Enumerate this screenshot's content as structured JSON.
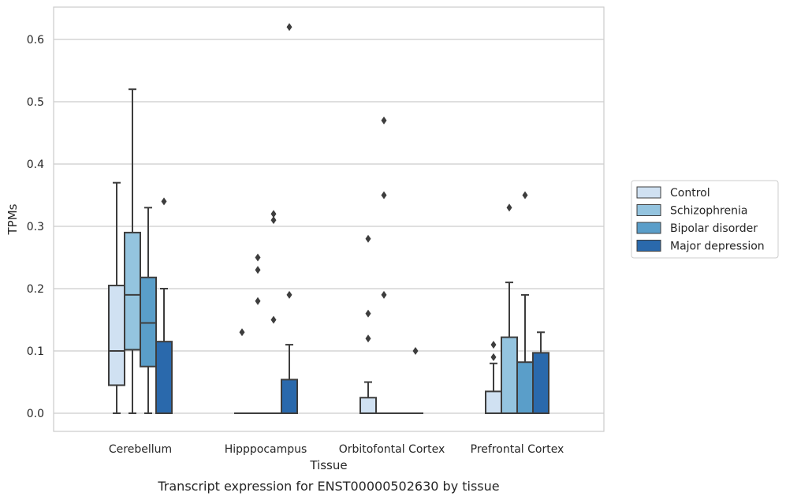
{
  "chart_data": {
    "type": "box",
    "xlabel": "Tissue",
    "ylabel": "TPMs",
    "caption": "Transcript expression for ENST00000502630 by tissue",
    "ylim": [
      -0.03,
      0.655
    ],
    "yticks": [
      0.0,
      0.1,
      0.2,
      0.3,
      0.4,
      0.5,
      0.6
    ],
    "ytick_labels": [
      "0.0",
      "0.1",
      "0.2",
      "0.3",
      "0.4",
      "0.5",
      "0.6"
    ],
    "grid": "horizontal",
    "legend_position": "right",
    "categories": [
      "Cerebellum",
      "Hipppocampus",
      "Orbitofontal Cortex",
      "Prefrontal Cortex"
    ],
    "series": [
      {
        "name": "Control",
        "color": "#d0e1f2",
        "boxes": [
          {
            "q1": 0.045,
            "median": 0.1,
            "q3": 0.205,
            "whisker_low": 0.0,
            "whisker_high": 0.37,
            "outliers": []
          },
          {
            "q1": 0.0,
            "median": 0.0,
            "q3": 0.0,
            "whisker_low": 0.0,
            "whisker_high": 0.0,
            "outliers": [
              0.13
            ]
          },
          {
            "q1": 0.0,
            "median": 0.0,
            "q3": 0.025,
            "whisker_low": 0.0,
            "whisker_high": 0.05,
            "outliers": [
              0.12,
              0.16,
              0.28
            ]
          },
          {
            "q1": 0.0,
            "median": 0.0,
            "q3": 0.035,
            "whisker_low": 0.0,
            "whisker_high": 0.08,
            "outliers": [
              0.09,
              0.11
            ]
          }
        ]
      },
      {
        "name": "Schizophrenia",
        "color": "#94c4df",
        "boxes": [
          {
            "q1": 0.102,
            "median": 0.19,
            "q3": 0.29,
            "whisker_low": 0.0,
            "whisker_high": 0.52,
            "outliers": []
          },
          {
            "q1": 0.0,
            "median": 0.0,
            "q3": 0.0,
            "whisker_low": 0.0,
            "whisker_high": 0.0,
            "outliers": [
              0.18,
              0.23,
              0.25
            ]
          },
          {
            "q1": 0.0,
            "median": 0.0,
            "q3": 0.0,
            "whisker_low": 0.0,
            "whisker_high": 0.0,
            "outliers": [
              0.19,
              0.35,
              0.47
            ]
          },
          {
            "q1": 0.0,
            "median": 0.0,
            "q3": 0.122,
            "whisker_low": 0.0,
            "whisker_high": 0.21,
            "outliers": [
              0.33
            ]
          }
        ]
      },
      {
        "name": "Bipolar disorder",
        "color": "#5a9ec9",
        "boxes": [
          {
            "q1": 0.075,
            "median": 0.145,
            "q3": 0.218,
            "whisker_low": 0.0,
            "whisker_high": 0.33,
            "outliers": []
          },
          {
            "q1": 0.0,
            "median": 0.0,
            "q3": 0.0,
            "whisker_low": 0.0,
            "whisker_high": 0.0,
            "outliers": [
              0.15,
              0.31,
              0.32
            ]
          },
          {
            "q1": 0.0,
            "median": 0.0,
            "q3": 0.0,
            "whisker_low": 0.0,
            "whisker_high": 0.0,
            "outliers": []
          },
          {
            "q1": 0.0,
            "median": 0.0,
            "q3": 0.082,
            "whisker_low": 0.0,
            "whisker_high": 0.19,
            "outliers": [
              0.35
            ]
          }
        ]
      },
      {
        "name": "Major depression",
        "color": "#2a69ac",
        "boxes": [
          {
            "q1": 0.0,
            "median": 0.0,
            "q3": 0.115,
            "whisker_low": 0.0,
            "whisker_high": 0.2,
            "outliers": [
              0.34
            ]
          },
          {
            "q1": 0.0,
            "median": 0.0,
            "q3": 0.054,
            "whisker_low": 0.0,
            "whisker_high": 0.11,
            "outliers": [
              0.19,
              0.62
            ]
          },
          {
            "q1": 0.0,
            "median": 0.0,
            "q3": 0.0,
            "whisker_low": 0.0,
            "whisker_high": 0.0,
            "outliers": [
              0.1
            ]
          },
          {
            "q1": 0.0,
            "median": 0.0,
            "q3": 0.097,
            "whisker_low": 0.0,
            "whisker_high": 0.13,
            "outliers": []
          }
        ]
      }
    ],
    "colors": {
      "line": "#3d3d3d",
      "grid": "#cccccc",
      "frame": "#cccccc"
    }
  }
}
